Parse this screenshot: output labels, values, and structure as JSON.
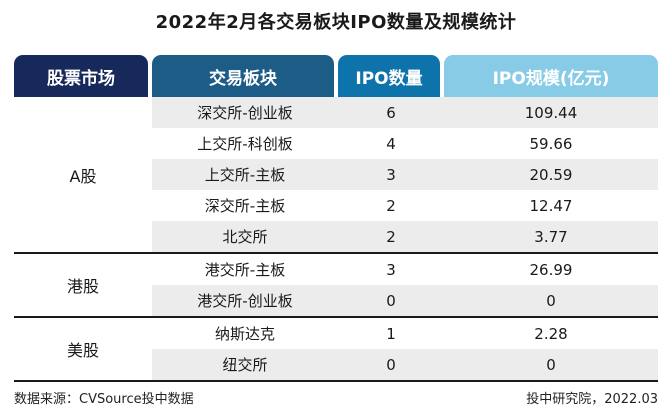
{
  "title": "2022年2月各交易板块IPO数量及规模统计",
  "colors": {
    "header_col1": "#17295a",
    "header_col2": "#1d5c87",
    "header_col3": "#0f73ab",
    "header_col4": "#87cbe7",
    "stripe": "#ececec",
    "divider": "#1a1a1a"
  },
  "table": {
    "headers": [
      "股票市场",
      "交易板块",
      "IPO数量",
      "IPO规模(亿元)"
    ],
    "sections": [
      {
        "market": "A股",
        "rows": [
          {
            "board": "深交所-创业板",
            "count": "6",
            "scale": "109.44"
          },
          {
            "board": "上交所-科创板",
            "count": "4",
            "scale": "59.66"
          },
          {
            "board": "上交所-主板",
            "count": "3",
            "scale": "20.59"
          },
          {
            "board": "深交所-主板",
            "count": "2",
            "scale": "12.47"
          },
          {
            "board": "北交所",
            "count": "2",
            "scale": "3.77"
          }
        ]
      },
      {
        "market": "港股",
        "rows": [
          {
            "board": "港交所-主板",
            "count": "3",
            "scale": "26.99"
          },
          {
            "board": "港交所-创业板",
            "count": "0",
            "scale": "0"
          }
        ]
      },
      {
        "market": "美股",
        "rows": [
          {
            "board": "纳斯达克",
            "count": "1",
            "scale": "2.28"
          },
          {
            "board": "纽交所",
            "count": "0",
            "scale": "0"
          }
        ]
      }
    ]
  },
  "footer": {
    "source": "数据来源：CVSource投中数据",
    "credit": "投中研究院，2022.03"
  },
  "chart_data": {
    "type": "table",
    "title": "2022年2月各交易板块IPO数量及规模统计",
    "columns": [
      "股票市场",
      "交易板块",
      "IPO数量",
      "IPO规模(亿元)"
    ],
    "rows": [
      [
        "A股",
        "深交所-创业板",
        6,
        109.44
      ],
      [
        "A股",
        "上交所-科创板",
        4,
        59.66
      ],
      [
        "A股",
        "上交所-主板",
        3,
        20.59
      ],
      [
        "A股",
        "深交所-主板",
        2,
        12.47
      ],
      [
        "A股",
        "北交所",
        2,
        3.77
      ],
      [
        "港股",
        "港交所-主板",
        3,
        26.99
      ],
      [
        "港股",
        "港交所-创业板",
        0,
        0
      ],
      [
        "美股",
        "纳斯达克",
        1,
        2.28
      ],
      [
        "美股",
        "纽交所",
        0,
        0
      ]
    ],
    "source": "数据来源：CVSource投中数据",
    "credit": "投中研究院，2022.03"
  }
}
